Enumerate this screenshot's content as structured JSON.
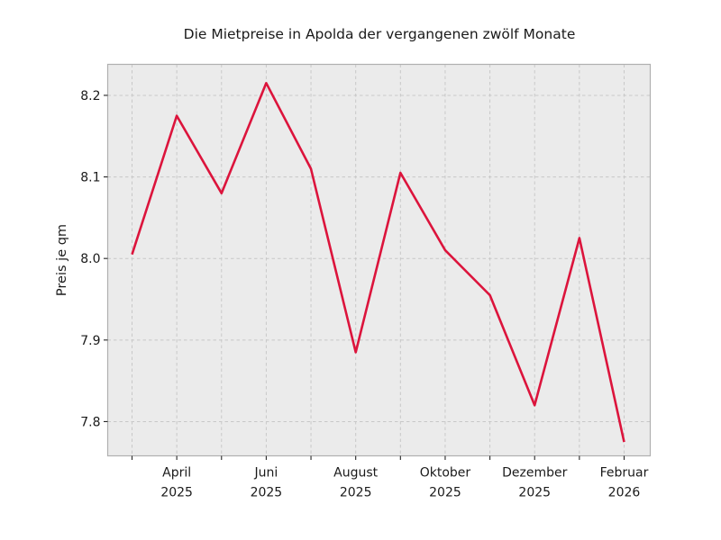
{
  "chart_data": {
    "type": "line",
    "title": "Die Mietpreise in Apolda der vergangenen zwölf Monate",
    "ylabel": "Preis je qm",
    "xlabel": "",
    "n_points": 12,
    "values": [
      8.005,
      8.175,
      8.08,
      8.215,
      8.11,
      7.885,
      8.105,
      8.01,
      7.955,
      7.82,
      8.025,
      7.775
    ],
    "x_ticks": [
      {
        "index": 1,
        "label": "April",
        "sublabel": "2025"
      },
      {
        "index": 3,
        "label": "Juni",
        "sublabel": "2025"
      },
      {
        "index": 5,
        "label": "August",
        "sublabel": "2025"
      },
      {
        "index": 7,
        "label": "Oktober",
        "sublabel": "2025"
      },
      {
        "index": 9,
        "label": "Dezember",
        "sublabel": "2025"
      },
      {
        "index": 11,
        "label": "Februar",
        "sublabel": "2026"
      }
    ],
    "y_ticks": [
      8.2,
      8.1,
      8.0,
      7.9,
      7.8
    ],
    "ylim": [
      7.758,
      8.238
    ],
    "grid": true,
    "legend": false,
    "line_color": "#dc143c",
    "plot_background": "#ebebeb",
    "grid_color": "#c8c8c8",
    "spine_color": "#b0b0b0",
    "tick_color": "#262626",
    "text_color": "#1a1a1a"
  }
}
